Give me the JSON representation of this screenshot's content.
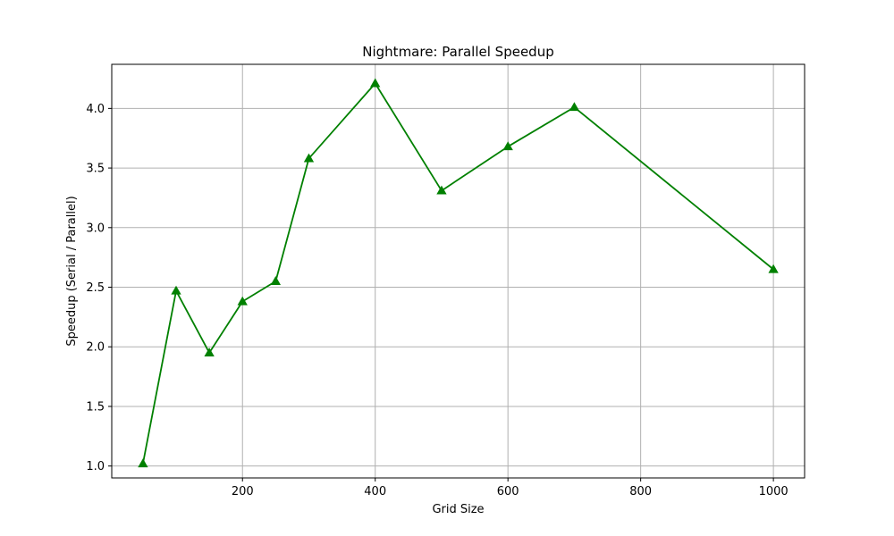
{
  "chart_data": {
    "type": "line",
    "title": "Nightmare: Parallel Speedup",
    "xlabel": "Grid Size",
    "ylabel": "Speedup (Serial / Parallel)",
    "xlim": [
      3,
      1047
    ],
    "ylim": [
      0.9,
      4.37
    ],
    "xticks": [
      200,
      400,
      600,
      800,
      1000
    ],
    "yticks": [
      1.0,
      1.5,
      2.0,
      2.5,
      3.0,
      3.5,
      4.0
    ],
    "xtick_labels": [
      "200",
      "400",
      "600",
      "800",
      "1000"
    ],
    "ytick_labels": [
      "1.0",
      "1.5",
      "2.0",
      "2.5",
      "3.0",
      "3.5",
      "4.0"
    ],
    "grid": true,
    "series": [
      {
        "color": "#008000",
        "marker": "triangle-up",
        "x": [
          50,
          100,
          150,
          200,
          250,
          300,
          400,
          500,
          600,
          700,
          1000
        ],
        "y": [
          1.02,
          2.47,
          1.95,
          2.38,
          2.55,
          3.58,
          4.21,
          3.31,
          3.68,
          4.01,
          2.65
        ]
      }
    ]
  }
}
